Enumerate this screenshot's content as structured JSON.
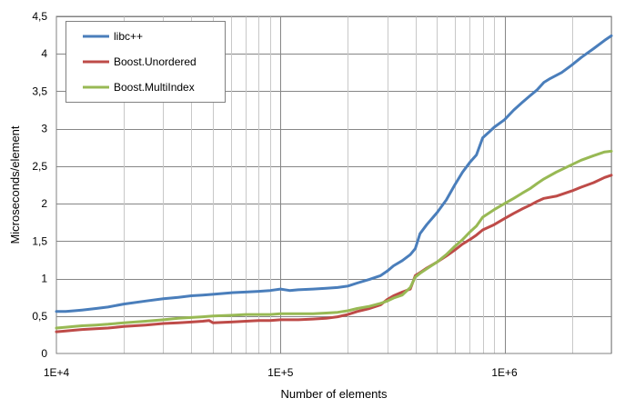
{
  "chart_data": {
    "type": "line",
    "title": "",
    "xlabel": "Number of elements",
    "ylabel": "Microseconds/element",
    "x_scale": "log",
    "xlim": [
      10000,
      3000000
    ],
    "ylim": [
      0,
      4.5
    ],
    "x_ticks": [
      {
        "value": 10000,
        "label": "1E+4"
      },
      {
        "value": 100000,
        "label": "1E+5"
      },
      {
        "value": 1000000,
        "label": "1E+6"
      }
    ],
    "y_ticks": [
      {
        "value": 0,
        "label": "0"
      },
      {
        "value": 0.5,
        "label": "0,5"
      },
      {
        "value": 1,
        "label": "1"
      },
      {
        "value": 1.5,
        "label": "1,5"
      },
      {
        "value": 2,
        "label": "2"
      },
      {
        "value": 2.5,
        "label": "2,5"
      },
      {
        "value": 3,
        "label": "3"
      },
      {
        "value": 3.5,
        "label": "3,5"
      },
      {
        "value": 4,
        "label": "4"
      },
      {
        "value": 4.5,
        "label": "4,5"
      }
    ],
    "grid": "on",
    "legend_position": "top-left",
    "series": [
      {
        "name": "libc++",
        "color": "#4a7ebb",
        "points": [
          [
            10000,
            0.56
          ],
          [
            11000,
            0.56
          ],
          [
            12000,
            0.57
          ],
          [
            13000,
            0.58
          ],
          [
            15000,
            0.6
          ],
          [
            17000,
            0.62
          ],
          [
            20000,
            0.66
          ],
          [
            25000,
            0.7
          ],
          [
            30000,
            0.73
          ],
          [
            35000,
            0.75
          ],
          [
            40000,
            0.77
          ],
          [
            45000,
            0.78
          ],
          [
            50000,
            0.79
          ],
          [
            60000,
            0.81
          ],
          [
            70000,
            0.82
          ],
          [
            80000,
            0.83
          ],
          [
            90000,
            0.84
          ],
          [
            100000,
            0.86
          ],
          [
            110000,
            0.84
          ],
          [
            120000,
            0.85
          ],
          [
            140000,
            0.86
          ],
          [
            160000,
            0.87
          ],
          [
            180000,
            0.88
          ],
          [
            200000,
            0.9
          ],
          [
            220000,
            0.94
          ],
          [
            250000,
            0.99
          ],
          [
            280000,
            1.04
          ],
          [
            300000,
            1.1
          ],
          [
            320000,
            1.17
          ],
          [
            350000,
            1.24
          ],
          [
            380000,
            1.32
          ],
          [
            400000,
            1.4
          ],
          [
            420000,
            1.6
          ],
          [
            450000,
            1.72
          ],
          [
            500000,
            1.88
          ],
          [
            550000,
            2.05
          ],
          [
            600000,
            2.25
          ],
          [
            650000,
            2.42
          ],
          [
            700000,
            2.55
          ],
          [
            750000,
            2.65
          ],
          [
            800000,
            2.88
          ],
          [
            850000,
            2.95
          ],
          [
            900000,
            3.02
          ],
          [
            1000000,
            3.12
          ],
          [
            1100000,
            3.25
          ],
          [
            1200000,
            3.35
          ],
          [
            1300000,
            3.44
          ],
          [
            1400000,
            3.52
          ],
          [
            1500000,
            3.62
          ],
          [
            1600000,
            3.67
          ],
          [
            1800000,
            3.75
          ],
          [
            2000000,
            3.85
          ],
          [
            2200000,
            3.95
          ],
          [
            2500000,
            4.07
          ],
          [
            2800000,
            4.18
          ],
          [
            3000000,
            4.24
          ]
        ]
      },
      {
        "name": "Boost.Unordered",
        "color": "#be4b48",
        "points": [
          [
            10000,
            0.29
          ],
          [
            11000,
            0.3
          ],
          [
            12000,
            0.31
          ],
          [
            13000,
            0.32
          ],
          [
            15000,
            0.33
          ],
          [
            17000,
            0.34
          ],
          [
            20000,
            0.36
          ],
          [
            25000,
            0.38
          ],
          [
            30000,
            0.4
          ],
          [
            35000,
            0.41
          ],
          [
            40000,
            0.42
          ],
          [
            45000,
            0.43
          ],
          [
            48000,
            0.44
          ],
          [
            50000,
            0.41
          ],
          [
            60000,
            0.42
          ],
          [
            70000,
            0.43
          ],
          [
            80000,
            0.44
          ],
          [
            90000,
            0.44
          ],
          [
            100000,
            0.45
          ],
          [
            120000,
            0.45
          ],
          [
            140000,
            0.46
          ],
          [
            160000,
            0.47
          ],
          [
            180000,
            0.49
          ],
          [
            200000,
            0.52
          ],
          [
            220000,
            0.56
          ],
          [
            250000,
            0.6
          ],
          [
            280000,
            0.65
          ],
          [
            300000,
            0.72
          ],
          [
            320000,
            0.77
          ],
          [
            350000,
            0.82
          ],
          [
            380000,
            0.86
          ],
          [
            400000,
            1.04
          ],
          [
            420000,
            1.08
          ],
          [
            450000,
            1.14
          ],
          [
            500000,
            1.22
          ],
          [
            550000,
            1.3
          ],
          [
            600000,
            1.38
          ],
          [
            650000,
            1.46
          ],
          [
            700000,
            1.52
          ],
          [
            750000,
            1.58
          ],
          [
            800000,
            1.65
          ],
          [
            900000,
            1.72
          ],
          [
            1000000,
            1.8
          ],
          [
            1100000,
            1.87
          ],
          [
            1200000,
            1.93
          ],
          [
            1300000,
            1.98
          ],
          [
            1400000,
            2.03
          ],
          [
            1500000,
            2.07
          ],
          [
            1700000,
            2.1
          ],
          [
            2000000,
            2.17
          ],
          [
            2200000,
            2.22
          ],
          [
            2500000,
            2.28
          ],
          [
            2800000,
            2.35
          ],
          [
            3000000,
            2.38
          ]
        ]
      },
      {
        "name": "Boost.MultiIndex",
        "color": "#98b954",
        "points": [
          [
            10000,
            0.34
          ],
          [
            11000,
            0.35
          ],
          [
            12000,
            0.36
          ],
          [
            13000,
            0.37
          ],
          [
            15000,
            0.38
          ],
          [
            17000,
            0.39
          ],
          [
            20000,
            0.41
          ],
          [
            25000,
            0.43
          ],
          [
            30000,
            0.45
          ],
          [
            35000,
            0.47
          ],
          [
            40000,
            0.48
          ],
          [
            45000,
            0.49
          ],
          [
            50000,
            0.5
          ],
          [
            60000,
            0.51
          ],
          [
            70000,
            0.52
          ],
          [
            80000,
            0.52
          ],
          [
            90000,
            0.52
          ],
          [
            100000,
            0.53
          ],
          [
            120000,
            0.53
          ],
          [
            140000,
            0.53
          ],
          [
            160000,
            0.54
          ],
          [
            180000,
            0.55
          ],
          [
            200000,
            0.57
          ],
          [
            220000,
            0.6
          ],
          [
            250000,
            0.63
          ],
          [
            280000,
            0.67
          ],
          [
            300000,
            0.7
          ],
          [
            320000,
            0.74
          ],
          [
            350000,
            0.78
          ],
          [
            380000,
            0.88
          ],
          [
            400000,
            1.02
          ],
          [
            420000,
            1.07
          ],
          [
            450000,
            1.13
          ],
          [
            500000,
            1.22
          ],
          [
            550000,
            1.32
          ],
          [
            600000,
            1.43
          ],
          [
            650000,
            1.52
          ],
          [
            700000,
            1.62
          ],
          [
            750000,
            1.7
          ],
          [
            800000,
            1.82
          ],
          [
            900000,
            1.92
          ],
          [
            1000000,
            2.0
          ],
          [
            1100000,
            2.07
          ],
          [
            1200000,
            2.14
          ],
          [
            1300000,
            2.2
          ],
          [
            1400000,
            2.27
          ],
          [
            1500000,
            2.33
          ],
          [
            1700000,
            2.42
          ],
          [
            2000000,
            2.52
          ],
          [
            2200000,
            2.58
          ],
          [
            2500000,
            2.64
          ],
          [
            2800000,
            2.69
          ],
          [
            3000000,
            2.7
          ]
        ]
      }
    ]
  }
}
